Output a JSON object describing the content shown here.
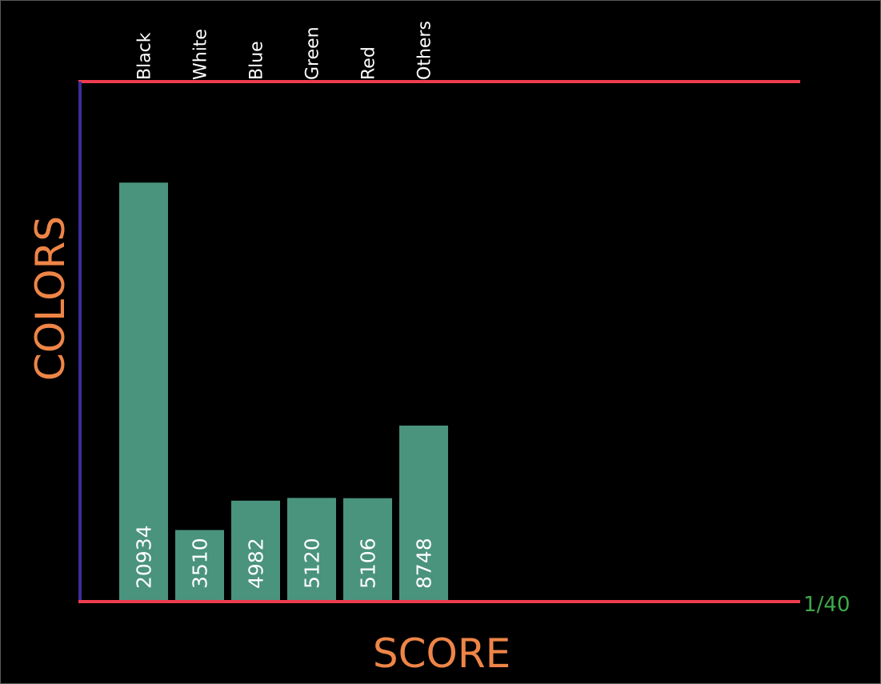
{
  "chart_data": {
    "type": "bar",
    "categories": [
      "Black",
      "White",
      "Blue",
      "Green",
      "Red",
      "Others"
    ],
    "values": [
      20934,
      3510,
      4982,
      5120,
      5106,
      8748
    ],
    "xlabel": "SCORE",
    "ylabel": "COLORS",
    "ylim": [
      0,
      26000
    ],
    "grid": false,
    "legend": "none"
  },
  "page_indicator": "1/40",
  "colors": {
    "background": "#000000",
    "bar": "#4a937d",
    "axis_line": "#ee3d4f",
    "y_axis_line": "#3a2f9a",
    "title": "#ee8547",
    "page_indicator": "#3fa84a",
    "text": "#ffffff"
  }
}
